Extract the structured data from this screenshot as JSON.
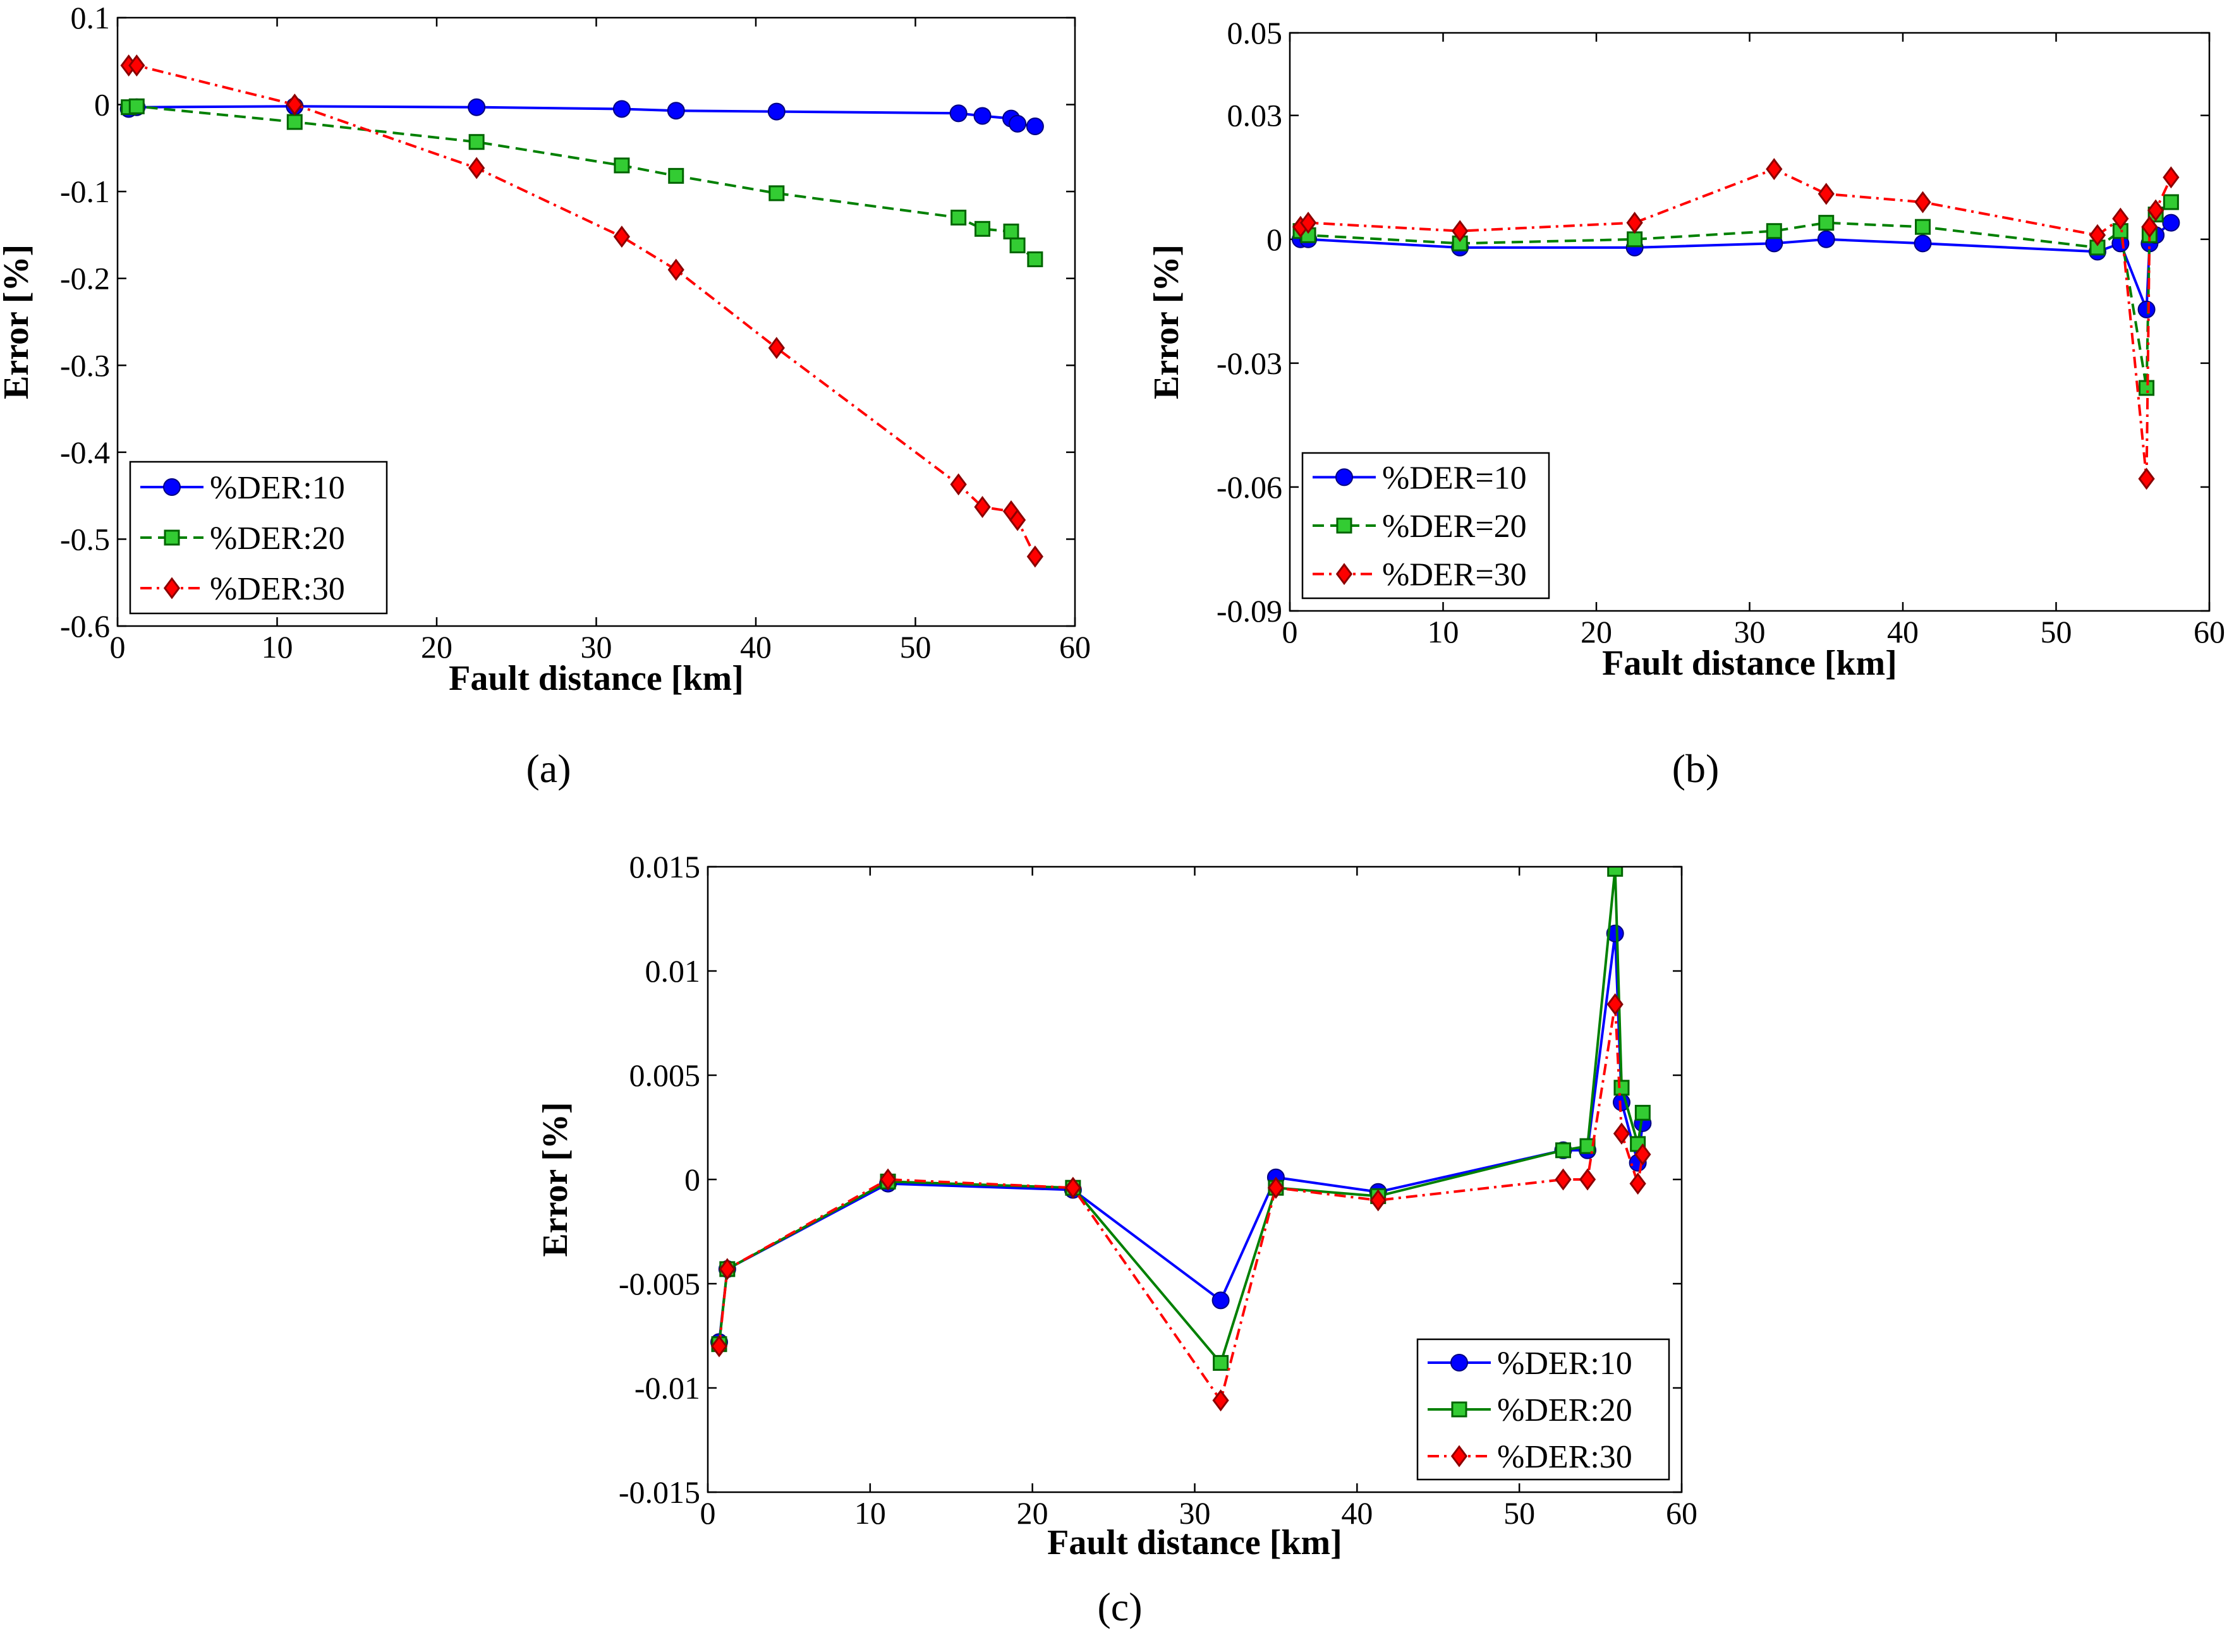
{
  "chart_data": [
    {
      "id": "a",
      "type": "line",
      "caption": "(a)",
      "xlabel": "Fault distance [km]",
      "ylabel": "Error [%]",
      "xlim": [
        0,
        60
      ],
      "ylim": [
        -0.6,
        0.1
      ],
      "xticks": [
        0,
        10,
        20,
        30,
        40,
        50,
        60
      ],
      "xtick_labels": [
        "0",
        "10",
        "20",
        "30",
        "40",
        "50",
        "60"
      ],
      "yticks": [
        -0.6,
        -0.5,
        -0.4,
        -0.3,
        -0.2,
        -0.1,
        0,
        0.1
      ],
      "ytick_labels": [
        "-0.6",
        "-0.5",
        "-0.4",
        "-0.3",
        "-0.2",
        "-0.1",
        "0",
        "0.1"
      ],
      "legend_position": "bottom-left",
      "series": [
        {
          "name": "%DER:10",
          "color": "#0000ff",
          "marker": "circle",
          "dash": "solid",
          "x": [
            0.7,
            1.2,
            11.1,
            22.5,
            31.6,
            35.0,
            41.3,
            52.7,
            54.2,
            56.0,
            56.4,
            57.5
          ],
          "y": [
            -0.005,
            -0.003,
            -0.002,
            -0.003,
            -0.005,
            -0.007,
            -0.008,
            -0.01,
            -0.013,
            -0.016,
            -0.022,
            -0.025
          ]
        },
        {
          "name": "%DER:20",
          "color": "#008000",
          "marker": "square",
          "dash": "dashed",
          "x": [
            0.7,
            1.2,
            11.1,
            22.5,
            31.6,
            35.0,
            41.3,
            52.7,
            54.2,
            56.0,
            56.4,
            57.5
          ],
          "y": [
            -0.003,
            -0.002,
            -0.02,
            -0.043,
            -0.07,
            -0.082,
            -0.102,
            -0.13,
            -0.143,
            -0.146,
            -0.162,
            -0.178
          ]
        },
        {
          "name": "%DER:30",
          "color": "#ff0000",
          "marker": "diamond",
          "dash": "dashdot",
          "x": [
            0.7,
            1.2,
            11.1,
            22.5,
            31.6,
            35.0,
            41.3,
            52.7,
            54.2,
            56.0,
            56.4,
            57.5
          ],
          "y": [
            0.045,
            0.045,
            0.0,
            -0.073,
            -0.152,
            -0.19,
            -0.28,
            -0.437,
            -0.463,
            -0.468,
            -0.478,
            -0.52
          ]
        }
      ]
    },
    {
      "id": "b",
      "type": "line",
      "caption": "(b)",
      "xlabel": "Fault distance [km]",
      "ylabel": "Error [%]",
      "xlim": [
        0,
        60
      ],
      "ylim": [
        -0.09,
        0.05
      ],
      "xticks": [
        0,
        10,
        20,
        30,
        40,
        50,
        60
      ],
      "xtick_labels": [
        "0",
        "10",
        "20",
        "30",
        "40",
        "50",
        "60"
      ],
      "yticks": [
        -0.09,
        -0.06,
        -0.03,
        0,
        0.03,
        0.05
      ],
      "ytick_labels": [
        "-0.09",
        "-0.06",
        "-0.03",
        "0",
        "0.03",
        "0.05"
      ],
      "legend_position": "bottom-left",
      "series": [
        {
          "name": "%DER=10",
          "color": "#0000ff",
          "marker": "circle",
          "dash": "solid",
          "x": [
            0.7,
            1.2,
            11.1,
            22.5,
            31.6,
            35.0,
            41.3,
            52.7,
            54.2,
            55.9,
            56.1,
            56.5,
            57.5
          ],
          "y": [
            0.0,
            0.0,
            -0.002,
            -0.002,
            -0.001,
            0.0,
            -0.001,
            -0.003,
            -0.001,
            -0.017,
            -0.001,
            0.001,
            0.004
          ]
        },
        {
          "name": "%DER=20",
          "color": "#008000",
          "marker": "square",
          "dash": "dashed",
          "x": [
            0.7,
            1.2,
            11.1,
            22.5,
            31.6,
            35.0,
            41.3,
            52.7,
            54.2,
            55.9,
            56.1,
            56.5,
            57.5
          ],
          "y": [
            0.002,
            0.001,
            -0.001,
            0.0,
            0.002,
            0.004,
            0.003,
            -0.002,
            0.002,
            -0.036,
            0.001,
            0.006,
            0.009
          ]
        },
        {
          "name": "%DER=30",
          "color": "#ff0000",
          "marker": "diamond",
          "dash": "dashdot",
          "x": [
            0.7,
            1.2,
            11.1,
            22.5,
            31.6,
            35.0,
            41.3,
            52.7,
            54.2,
            55.9,
            56.1,
            56.5,
            57.5
          ],
          "y": [
            0.003,
            0.004,
            0.002,
            0.004,
            0.017,
            0.011,
            0.009,
            0.001,
            0.005,
            -0.058,
            0.003,
            0.007,
            0.015
          ]
        }
      ]
    },
    {
      "id": "c",
      "type": "line",
      "caption": "(c)",
      "xlabel": "Fault distance [km]",
      "ylabel": "Error [%]",
      "xlim": [
        0,
        60
      ],
      "ylim": [
        -0.015,
        0.015
      ],
      "xticks": [
        0,
        10,
        20,
        30,
        40,
        50,
        60
      ],
      "xtick_labels": [
        "0",
        "10",
        "20",
        "30",
        "40",
        "50",
        "60"
      ],
      "yticks": [
        -0.015,
        -0.01,
        -0.005,
        0,
        0.005,
        0.01,
        0.015
      ],
      "ytick_labels": [
        "-0.015",
        "-0.01",
        "-0.005",
        "0",
        "0.005",
        "0.01",
        "0.015"
      ],
      "legend_position": "bottom-right",
      "series": [
        {
          "name": "%DER:10",
          "color": "#0000ff",
          "marker": "circle",
          "dash": "solid",
          "x": [
            0.7,
            1.2,
            11.1,
            22.5,
            31.6,
            35.0,
            41.3,
            52.7,
            54.2,
            55.9,
            56.3,
            57.3,
            57.6
          ],
          "y": [
            -0.0078,
            -0.0043,
            -0.0002,
            -0.0005,
            -0.0058,
            0.0001,
            -0.0006,
            0.0014,
            0.0014,
            0.0118,
            0.0037,
            0.0008,
            0.0027
          ]
        },
        {
          "name": "%DER:20",
          "color": "#008000",
          "marker": "square",
          "dash": "solid",
          "x": [
            0.7,
            1.2,
            11.1,
            22.5,
            31.6,
            35.0,
            41.3,
            52.7,
            54.2,
            55.9,
            56.3,
            57.3,
            57.6
          ],
          "y": [
            -0.0079,
            -0.0043,
            -0.0001,
            -0.0004,
            -0.0088,
            -0.0004,
            -0.0008,
            0.0014,
            0.0016,
            0.0149,
            0.0044,
            0.0017,
            0.0032
          ]
        },
        {
          "name": "%DER:30",
          "color": "#ff0000",
          "marker": "diamond",
          "dash": "dashdot",
          "x": [
            0.7,
            1.2,
            11.1,
            22.5,
            31.6,
            35.0,
            41.3,
            52.7,
            54.2,
            55.9,
            56.3,
            57.3,
            57.6
          ],
          "y": [
            -0.008,
            -0.0043,
            0.0,
            -0.0004,
            -0.0106,
            -0.0004,
            -0.001,
            0.0,
            0.0,
            0.0084,
            0.0022,
            -0.0002,
            0.0012
          ]
        }
      ]
    }
  ]
}
